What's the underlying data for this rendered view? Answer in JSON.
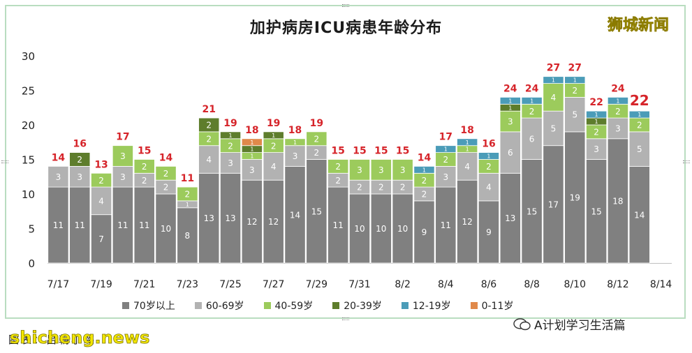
{
  "title": "加护病房ICU病患年龄分布",
  "brand": "狮城新闻",
  "credit": "图表：吕朝小璐",
  "watermark": "shicheng.news",
  "wechat_account": "A计划学习生活篇",
  "colors": {
    "70+": "#808080",
    "60-69": "#b2b2b2",
    "40-59": "#9ccb5c",
    "20-39": "#5e7d2c",
    "12-19": "#4b9cb8",
    "0-11": "#e0894a",
    "total_label": "#d6242a"
  },
  "chart_data": {
    "type": "bar",
    "stacked": true,
    "ylim": [
      0,
      30
    ],
    "yticks": [
      0,
      5,
      10,
      15,
      20,
      25,
      30
    ],
    "xtick_labels": [
      "7/17",
      "7/19",
      "7/21",
      "7/23",
      "7/25",
      "7/27",
      "7/29",
      "7/31",
      "8/2",
      "8/4",
      "8/6",
      "8/8",
      "8/10",
      "8/12",
      "8/14"
    ],
    "categories": [
      "7/17",
      "7/18",
      "7/19",
      "7/20",
      "7/21",
      "7/22",
      "7/23",
      "7/24",
      "7/25",
      "7/26",
      "7/27",
      "7/28",
      "7/29",
      "7/30",
      "7/31",
      "8/1",
      "8/2",
      "8/3",
      "8/4",
      "8/5",
      "8/6",
      "8/7",
      "8/8",
      "8/9",
      "8/10",
      "8/11",
      "8/12",
      "8/13",
      "8/14"
    ],
    "series": [
      {
        "name": "70岁以上",
        "key": "70+",
        "values": [
          11,
          11,
          7,
          11,
          11,
          10,
          8,
          13,
          13,
          12,
          12,
          14,
          15,
          11,
          10,
          10,
          10,
          9,
          11,
          12,
          9,
          13,
          15,
          17,
          19,
          15,
          18,
          14,
          0
        ]
      },
      {
        "name": "60-69岁",
        "key": "60-69",
        "values": [
          3,
          3,
          4,
          3,
          2,
          2,
          1,
          4,
          3,
          3,
          4,
          3,
          2,
          2,
          2,
          2,
          2,
          2,
          3,
          4,
          4,
          6,
          6,
          5,
          5,
          3,
          3,
          5,
          0
        ]
      },
      {
        "name": "40-59岁",
        "key": "40-59",
        "values": [
          0,
          0,
          2,
          3,
          2,
          2,
          2,
          2,
          2,
          1,
          2,
          1,
          2,
          2,
          3,
          3,
          3,
          2,
          2,
          1,
          2,
          3,
          2,
          4,
          2,
          2,
          2,
          2,
          0
        ]
      },
      {
        "name": "20-39岁",
        "key": "20-39",
        "values": [
          0,
          2,
          0,
          0,
          0,
          0,
          0,
          2,
          1,
          1,
          1,
          0,
          0,
          0,
          0,
          0,
          0,
          0,
          0,
          0,
          0,
          1,
          0,
          0,
          0,
          1,
          0,
          0,
          0
        ]
      },
      {
        "name": "12-19岁",
        "key": "12-19",
        "values": [
          0,
          0,
          0,
          0,
          0,
          0,
          0,
          0,
          0,
          0,
          0,
          0,
          0,
          0,
          0,
          0,
          0,
          1,
          1,
          1,
          1,
          1,
          1,
          1,
          1,
          1,
          1,
          1,
          0
        ]
      },
      {
        "name": "0-11岁",
        "key": "0-11",
        "values": [
          0,
          0,
          0,
          0,
          0,
          0,
          0,
          0,
          0,
          1,
          0,
          0,
          0,
          0,
          0,
          0,
          0,
          0,
          0,
          0,
          0,
          0,
          0,
          0,
          0,
          0,
          0,
          0,
          0
        ]
      }
    ],
    "totals": [
      14,
      16,
      13,
      17,
      15,
      14,
      11,
      21,
      19,
      18,
      19,
      18,
      19,
      15,
      15,
      15,
      15,
      14,
      17,
      18,
      16,
      24,
      24,
      27,
      27,
      22,
      24,
      22,
      null
    ],
    "highlight_last_total": true
  }
}
